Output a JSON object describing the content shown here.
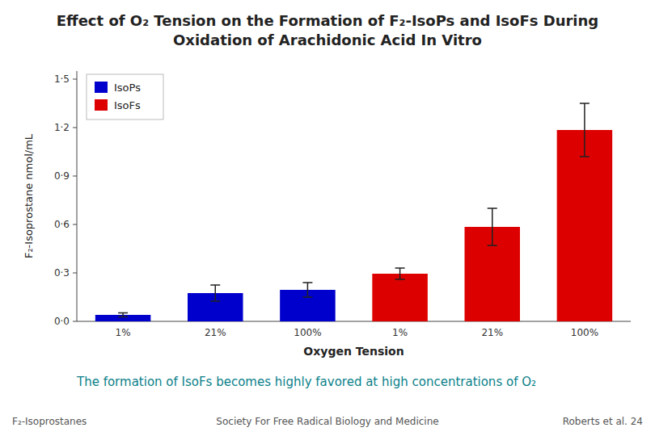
{
  "chart_data": {
    "type": "bar",
    "title": "Effect of O₂ Tension on the Formation of F₂-IsoPs and IsoFs During Oxidation of Arachidonic Acid In Vitro",
    "subtitle": "The formation of IsoFs becomes highly favored at high concentrations of O₂",
    "x_label": "Oxygen Tension",
    "y_label": "F₂-Isoprostane nmol/mL",
    "categories": [
      "1%",
      "21%",
      "100%",
      "1%",
      "21%",
      "100%"
    ],
    "series": [
      {
        "name": "IsoPs",
        "color": "#0000cc",
        "values": [
          0.04,
          0.175,
          0.195,
          null,
          null,
          null
        ],
        "errors": [
          0.012,
          0.05,
          0.045,
          null,
          null,
          null
        ]
      },
      {
        "name": "IsoFs",
        "color": "#dd0000",
        "values": [
          null,
          null,
          null,
          0.295,
          0.585,
          1.185
        ],
        "errors": [
          null,
          null,
          null,
          0.035,
          0.115,
          0.165
        ]
      }
    ],
    "ylim": [
      0,
      1.55
    ],
    "yticks": [
      {
        "value": 0.0,
        "label": "0·0"
      },
      {
        "value": 0.3,
        "label": "0·3"
      },
      {
        "value": 0.6,
        "label": "0·6"
      },
      {
        "value": 0.9,
        "label": "0·9"
      },
      {
        "value": 1.2,
        "label": "1·2"
      },
      {
        "value": 1.5,
        "label": "1·5"
      }
    ],
    "grid": false,
    "legend": "upper left",
    "annotations": [
      "F₂-Isoprostanes",
      "Society For Free Radical Biology and Medicine",
      "Roberts et al. 24"
    ]
  }
}
